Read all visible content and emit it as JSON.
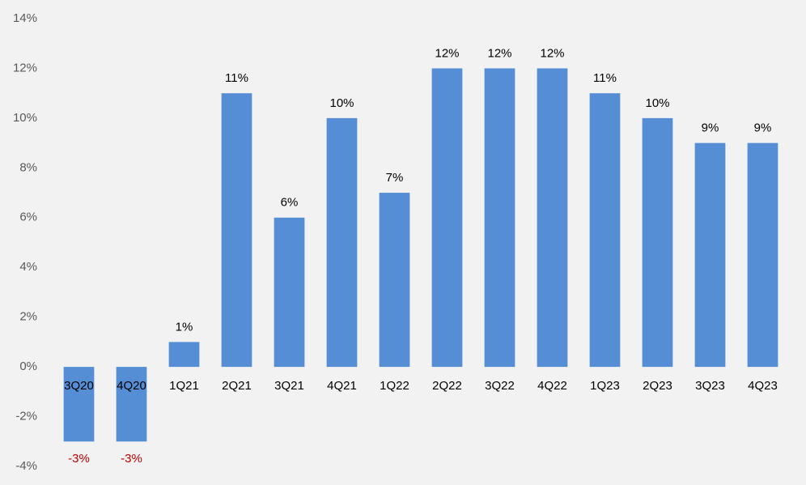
{
  "chart_data": {
    "type": "bar",
    "categories": [
      "3Q20",
      "4Q20",
      "1Q21",
      "2Q21",
      "3Q21",
      "4Q21",
      "1Q22",
      "2Q22",
      "3Q22",
      "4Q22",
      "1Q23",
      "2Q23",
      "3Q23",
      "4Q23"
    ],
    "values": [
      -3,
      -3,
      1,
      11,
      6,
      10,
      7,
      12,
      12,
      12,
      11,
      10,
      9,
      9
    ],
    "value_labels": [
      "-3%",
      "-3%",
      "1%",
      "11%",
      "6%",
      "10%",
      "7%",
      "12%",
      "12%",
      "12%",
      "11%",
      "10%",
      "9%",
      "9%"
    ],
    "color": "#558ed5",
    "negative_label_color": "#c00000",
    "ylim": [
      -4,
      14
    ],
    "yticks": [
      {
        "value": -4,
        "label": "-4%"
      },
      {
        "value": -2,
        "label": "-2%"
      },
      {
        "value": 0,
        "label": "0%"
      },
      {
        "value": 2,
        "label": "2%"
      },
      {
        "value": 4,
        "label": "4%"
      },
      {
        "value": 6,
        "label": "6%"
      },
      {
        "value": 8,
        "label": "8%"
      },
      {
        "value": 10,
        "label": "10%"
      },
      {
        "value": 12,
        "label": "12%"
      },
      {
        "value": 14,
        "label": "14%"
      }
    ],
    "grid": false
  }
}
